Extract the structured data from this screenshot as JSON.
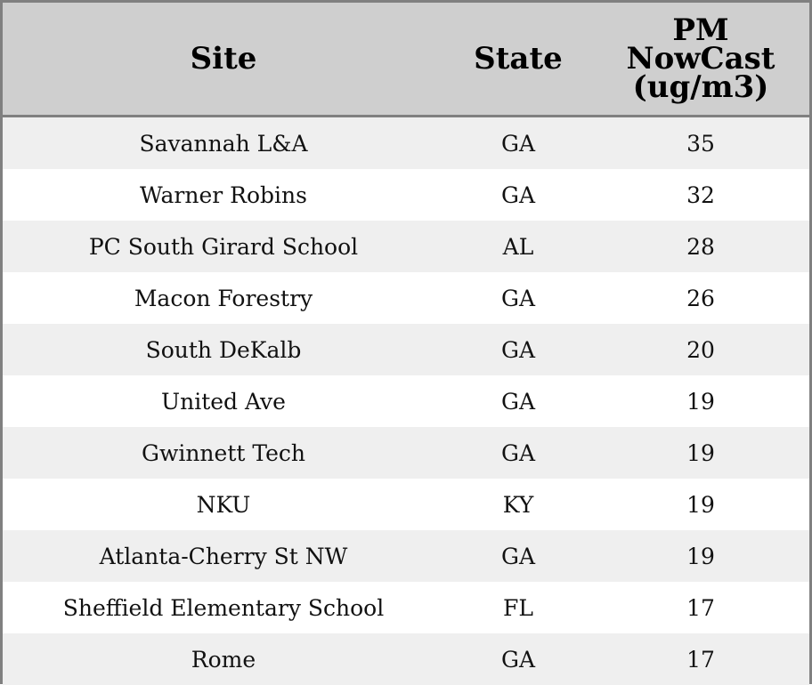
{
  "chart_data": {
    "type": "table",
    "columns": [
      "Site",
      "State",
      "PM NowCast (ug/m3)"
    ],
    "rows": [
      {
        "site": "Savannah L&A",
        "state": "GA",
        "pm": "35"
      },
      {
        "site": "Warner Robins",
        "state": "GA",
        "pm": "32"
      },
      {
        "site": "PC South Girard School",
        "state": "AL",
        "pm": "28"
      },
      {
        "site": "Macon Forestry",
        "state": "GA",
        "pm": "26"
      },
      {
        "site": "South DeKalb",
        "state": "GA",
        "pm": "20"
      },
      {
        "site": "United Ave",
        "state": "GA",
        "pm": "19"
      },
      {
        "site": "Gwinnett Tech",
        "state": "GA",
        "pm": "19"
      },
      {
        "site": "NKU",
        "state": "KY",
        "pm": "19"
      },
      {
        "site": "Atlanta-Cherry St NW",
        "state": "GA",
        "pm": "19"
      },
      {
        "site": "Sheffield Elementary School",
        "state": "FL",
        "pm": "17"
      },
      {
        "site": "Rome",
        "state": "GA",
        "pm": "17"
      }
    ]
  },
  "header": {
    "site_label": "Site",
    "state_label": "State",
    "pm_label_line1": "PM",
    "pm_label_line2": "NowCast",
    "pm_label_line3": "(ug/m3)"
  },
  "colors": {
    "header_bg": "#cfcfcf",
    "stripe": "#efefef",
    "border": "#808080"
  }
}
